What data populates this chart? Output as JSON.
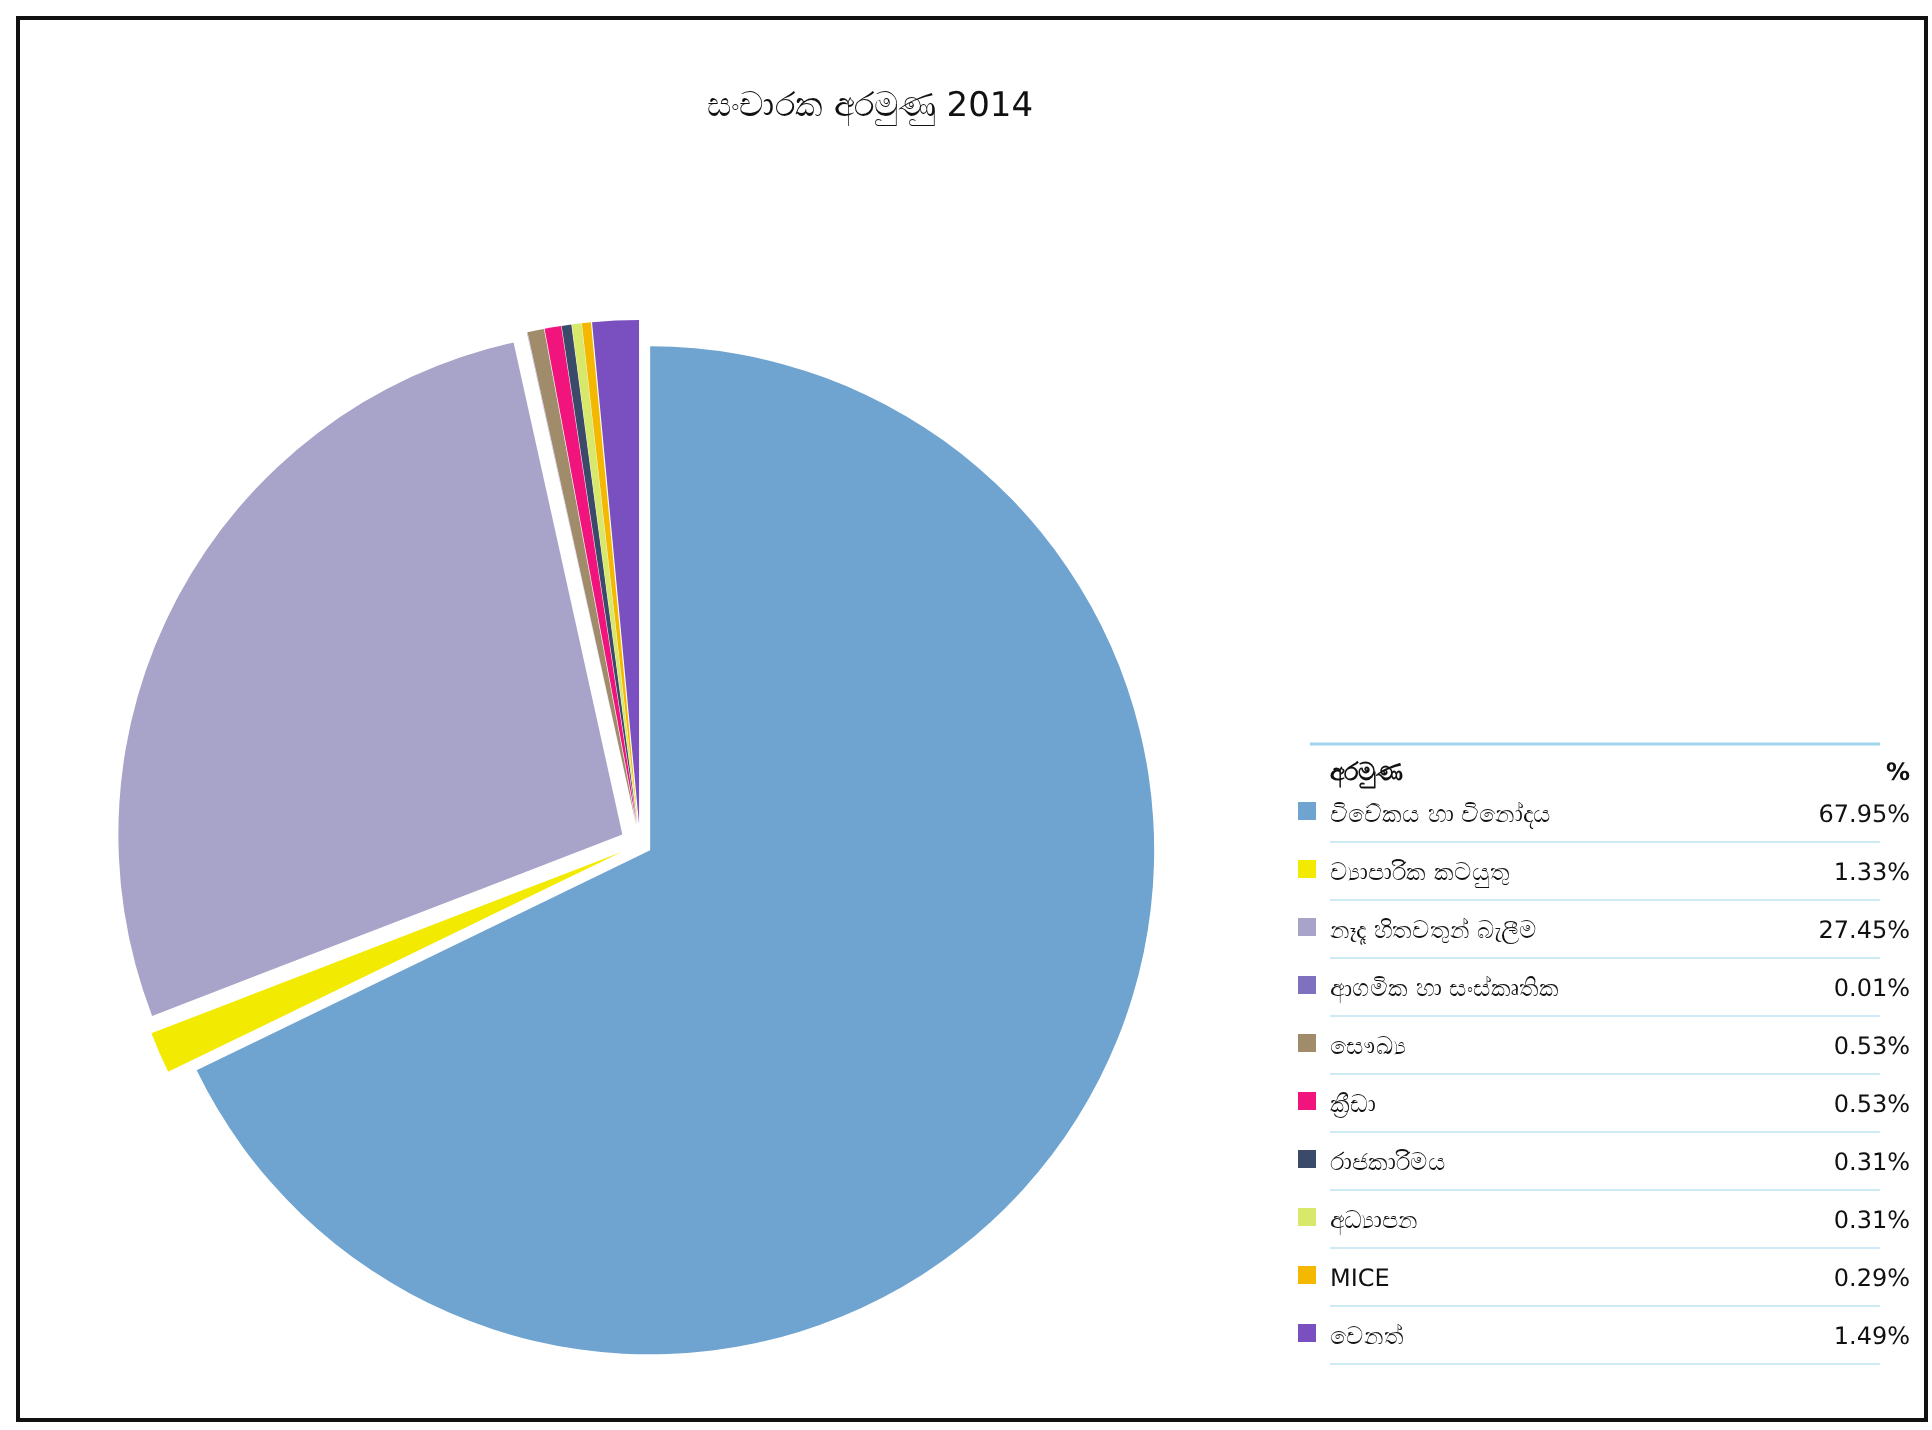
{
  "chart_data": {
    "type": "pie",
    "title": "සංචාරක අරමුණු 2014",
    "categories": [
      "විවේකය හා විනෝදය",
      "ව්‍යාපාරික කටයුතු",
      "නෑදෑ හිතවතුන් බැලීම",
      "ආගමික හා සංස්කෘතික",
      "සෞඛ්‍ය",
      "ක්‍රීඩා",
      "රාජකාරිමය",
      "අධ්‍යාපන",
      "MICE",
      "වෙනත්"
    ],
    "values": [
      67.95,
      1.33,
      27.45,
      0.01,
      0.53,
      0.53,
      0.31,
      0.31,
      0.29,
      1.49
    ],
    "value_labels": [
      "67.95%",
      "1.33%",
      "27.45%",
      "0.01%",
      "0.53%",
      "0.53%",
      "0.31%",
      "0.31%",
      "0.29%",
      "1.49%"
    ],
    "colors": [
      "#6fa3d0",
      "#f2ea00",
      "#a8a3c8",
      "#8070c0",
      "#a08c6a",
      "#f0147c",
      "#3c4a6a",
      "#d8e86a",
      "#f5b800",
      "#7a50c0"
    ],
    "legend": "bottom right",
    "legend_title": "අරමුණ",
    "annotations": [
      "%"
    ]
  }
}
